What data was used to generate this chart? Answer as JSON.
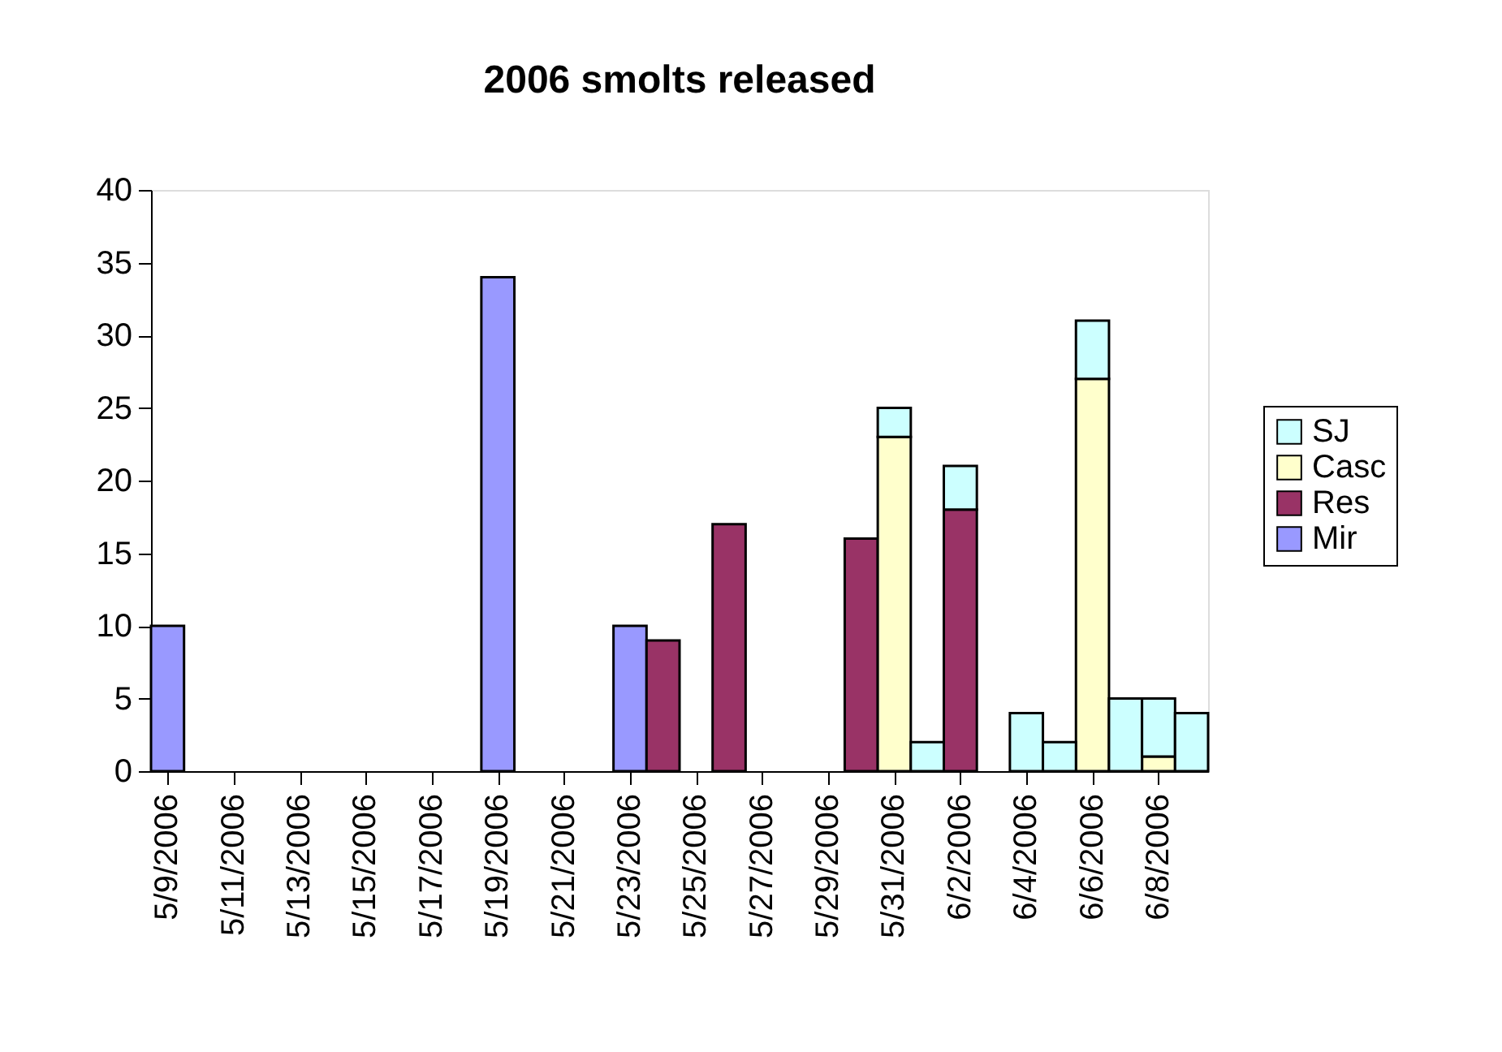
{
  "chart_data": {
    "type": "bar",
    "title": "2006 smolts released",
    "stacked": true,
    "grid": false,
    "legend": "right",
    "x": [
      "2006-05-09",
      "2006-05-19",
      "2006-05-23",
      "2006-05-24",
      "2006-05-26",
      "2006-05-30",
      "2006-05-31",
      "2006-06-01",
      "2006-06-02",
      "2006-06-04",
      "2006-06-05",
      "2006-06-06",
      "2006-06-07",
      "2006-06-08",
      "2006-06-09"
    ],
    "series": [
      {
        "name": "Mir",
        "color": "#9999ff",
        "values": [
          10,
          34,
          10,
          null,
          null,
          null,
          null,
          null,
          null,
          null,
          null,
          null,
          null,
          null,
          null
        ]
      },
      {
        "name": "Res",
        "color": "#993366",
        "values": [
          null,
          null,
          null,
          9,
          17,
          16,
          null,
          null,
          18,
          null,
          null,
          null,
          null,
          null,
          null
        ]
      },
      {
        "name": "Casc",
        "color": "#ffffcc",
        "values": [
          null,
          null,
          null,
          null,
          null,
          null,
          23,
          null,
          null,
          null,
          null,
          27,
          null,
          1,
          null
        ]
      },
      {
        "name": "SJ",
        "color": "#ccffff",
        "values": [
          null,
          null,
          null,
          null,
          null,
          null,
          2,
          2,
          3,
          4,
          2,
          4,
          5,
          4,
          4
        ]
      }
    ],
    "ylim": [
      0,
      40
    ],
    "yticks": [
      0,
      5,
      10,
      15,
      20,
      25,
      30,
      35,
      40
    ],
    "xlim": [
      "2006-05-08T12:00",
      "2006-06-09T12:00"
    ],
    "xticks": [
      {
        "value": "2006-05-09",
        "label": "5/9/2006"
      },
      {
        "value": "2006-05-11",
        "label": "5/11/2006"
      },
      {
        "value": "2006-05-13",
        "label": "5/13/2006"
      },
      {
        "value": "2006-05-15",
        "label": "5/15/2006"
      },
      {
        "value": "2006-05-17",
        "label": "5/17/2006"
      },
      {
        "value": "2006-05-19",
        "label": "5/19/2006"
      },
      {
        "value": "2006-05-21",
        "label": "5/21/2006"
      },
      {
        "value": "2006-05-23",
        "label": "5/23/2006"
      },
      {
        "value": "2006-05-25",
        "label": "5/25/2006"
      },
      {
        "value": "2006-05-27",
        "label": "5/27/2006"
      },
      {
        "value": "2006-05-29",
        "label": "5/29/2006"
      },
      {
        "value": "2006-05-31",
        "label": "5/31/2006"
      },
      {
        "value": "2006-06-02",
        "label": "6/2/2006"
      },
      {
        "value": "2006-06-04",
        "label": "6/4/2006"
      },
      {
        "value": "2006-06-06",
        "label": "6/6/2006"
      },
      {
        "value": "2006-06-08",
        "label": "6/8/2006"
      }
    ]
  }
}
